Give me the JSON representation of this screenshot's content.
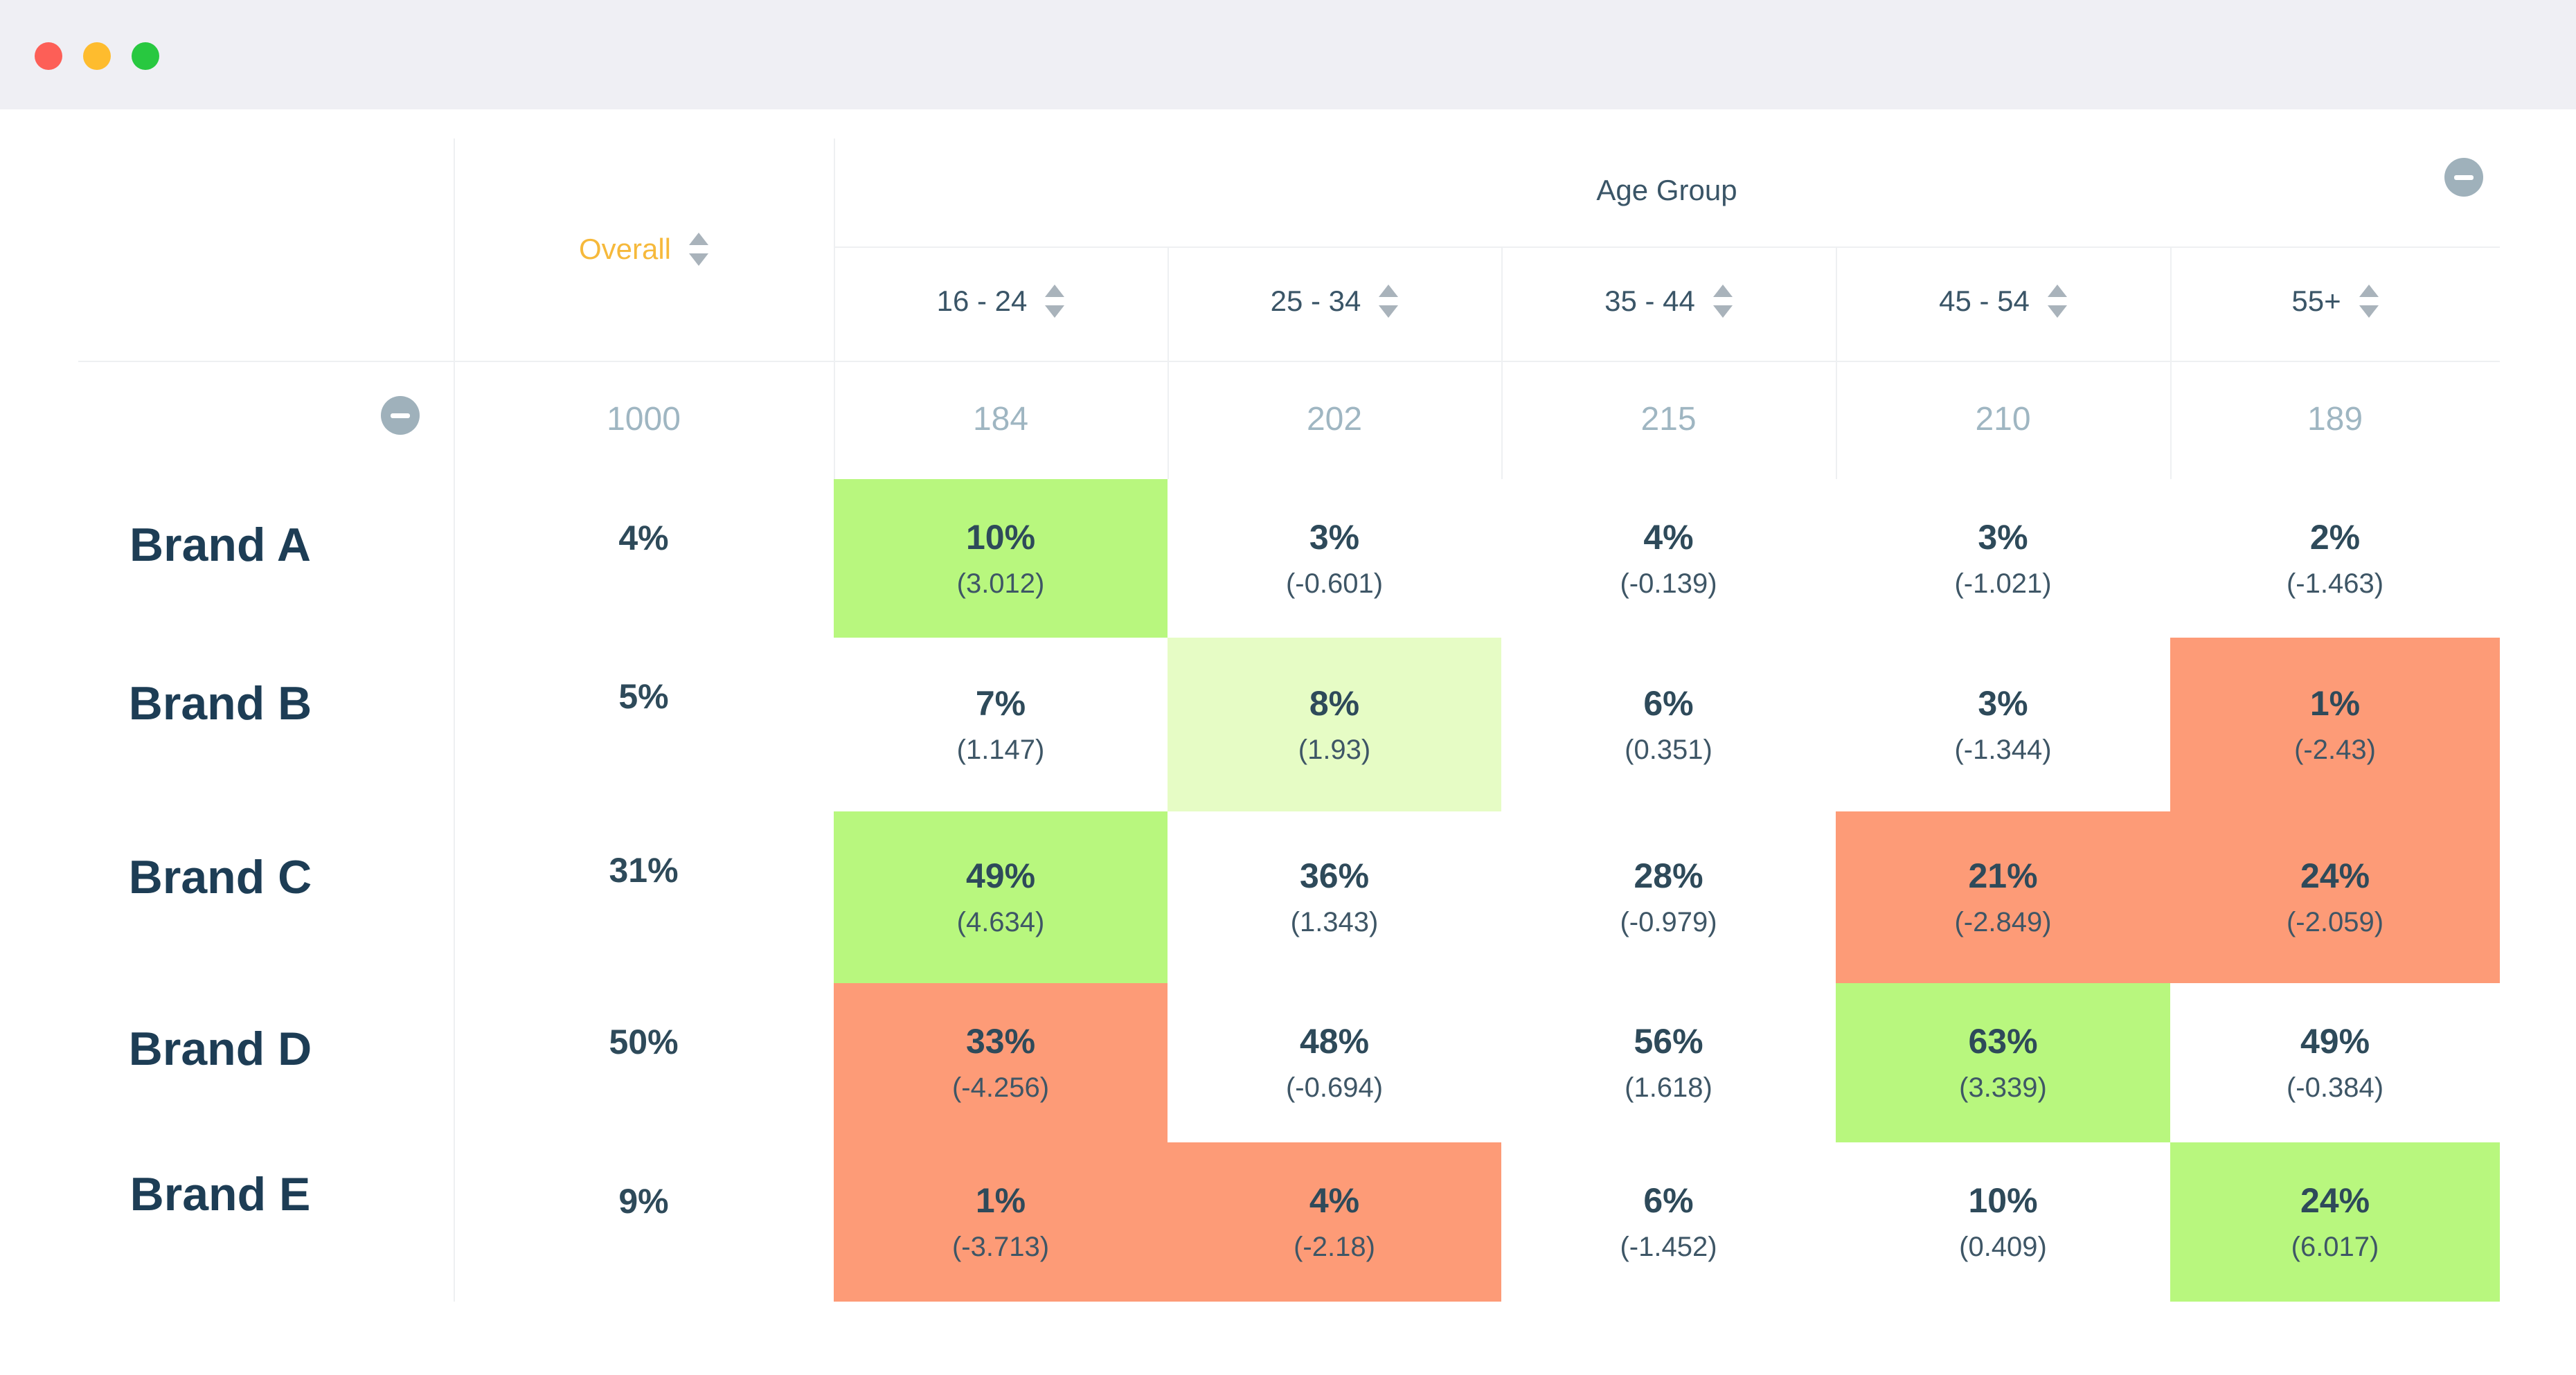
{
  "window": {
    "controls": [
      "close",
      "minimize",
      "maximize"
    ]
  },
  "table": {
    "overall_label": "Overall",
    "group_label": "Age Group",
    "columns": [
      "16 - 24",
      "25 - 34",
      "35 - 44",
      "45 - 54",
      "55+"
    ],
    "overall_count": "1000",
    "counts": [
      "184",
      "202",
      "215",
      "210",
      "189"
    ],
    "rows": [
      {
        "brand": "Brand A",
        "overall": "4%",
        "cells": [
          {
            "pct": "10%",
            "z": "(3.012)",
            "color": "#b8f77e"
          },
          {
            "pct": "3%",
            "z": "(-0.601)",
            "color": "#ffffff"
          },
          {
            "pct": "4%",
            "z": "(-0.139)",
            "color": "#ffffff"
          },
          {
            "pct": "3%",
            "z": "(-1.021)",
            "color": "#ffffff"
          },
          {
            "pct": "2%",
            "z": "(-1.463)",
            "color": "#ffffff"
          }
        ]
      },
      {
        "brand": "Brand B",
        "overall": "5%",
        "cells": [
          {
            "pct": "7%",
            "z": "(1.147)",
            "color": "#ffffff"
          },
          {
            "pct": "8%",
            "z": "(1.93)",
            "color": "#e6fcc5"
          },
          {
            "pct": "6%",
            "z": "(0.351)",
            "color": "#ffffff"
          },
          {
            "pct": "3%",
            "z": "(-1.344)",
            "color": "#ffffff"
          },
          {
            "pct": "1%",
            "z": "(-2.43)",
            "color": "#fd9b77"
          }
        ]
      },
      {
        "brand": "Brand C",
        "overall": "31%",
        "cells": [
          {
            "pct": "49%",
            "z": "(4.634)",
            "color": "#b8f77e"
          },
          {
            "pct": "36%",
            "z": "(1.343)",
            "color": "#ffffff"
          },
          {
            "pct": "28%",
            "z": "(-0.979)",
            "color": "#ffffff"
          },
          {
            "pct": "21%",
            "z": "(-2.849)",
            "color": "#fd9b77"
          },
          {
            "pct": "24%",
            "z": "(-2.059)",
            "color": "#fd9b77"
          }
        ]
      },
      {
        "brand": "Brand D",
        "overall": "50%",
        "cells": [
          {
            "pct": "33%",
            "z": "(-4.256)",
            "color": "#fd9b77"
          },
          {
            "pct": "48%",
            "z": "(-0.694)",
            "color": "#ffffff"
          },
          {
            "pct": "56%",
            "z": "(1.618)",
            "color": "#ffffff"
          },
          {
            "pct": "63%",
            "z": "(3.339)",
            "color": "#b8f77e"
          },
          {
            "pct": "49%",
            "z": "(-0.384)",
            "color": "#ffffff"
          }
        ]
      },
      {
        "brand": "Brand E",
        "overall": "9%",
        "cells": [
          {
            "pct": "1%",
            "z": "(-3.713)",
            "color": "#fd9b77"
          },
          {
            "pct": "4%",
            "z": "(-2.18)",
            "color": "#fd9b77"
          },
          {
            "pct": "6%",
            "z": "(-1.452)",
            "color": "#ffffff"
          },
          {
            "pct": "10%",
            "z": "(0.409)",
            "color": "#ffffff"
          },
          {
            "pct": "24%",
            "z": "(6.017)",
            "color": "#b8f77e"
          }
        ]
      }
    ]
  }
}
